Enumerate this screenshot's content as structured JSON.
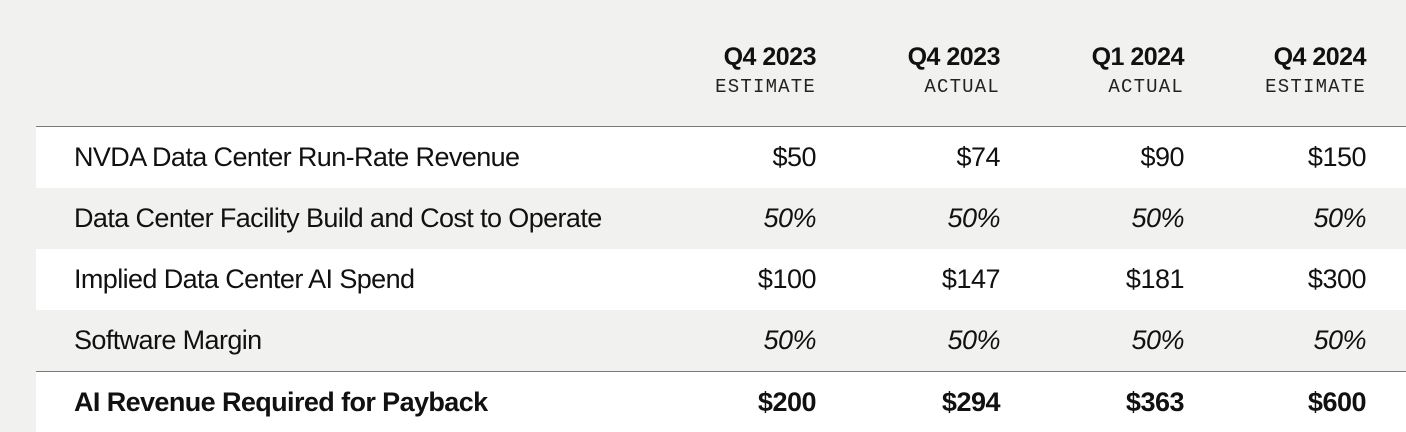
{
  "columns": [
    {
      "period": "Q4 2023",
      "kind": "ESTIMATE"
    },
    {
      "period": "Q4 2023",
      "kind": "ACTUAL"
    },
    {
      "period": "Q1 2024",
      "kind": "ACTUAL"
    },
    {
      "period": "Q4 2024",
      "kind": "ESTIMATE"
    }
  ],
  "rows": [
    {
      "label": "NVDA Data Center Run-Rate Revenue",
      "values": [
        "$50",
        "$74",
        "$90",
        "$150"
      ],
      "style": "normal"
    },
    {
      "label": "Data Center Facility Build and Cost to Operate",
      "values": [
        "50%",
        "50%",
        "50%",
        "50%"
      ],
      "style": "italic"
    },
    {
      "label": "Implied Data Center AI Spend",
      "values": [
        "$100",
        "$147",
        "$181",
        "$300"
      ],
      "style": "normal"
    },
    {
      "label": "Software Margin",
      "values": [
        "50%",
        "50%",
        "50%",
        "50%"
      ],
      "style": "italic"
    },
    {
      "label": "AI Revenue Required for Payback",
      "values": [
        "$200",
        "$294",
        "$363",
        "$600"
      ],
      "style": "bold"
    }
  ]
}
